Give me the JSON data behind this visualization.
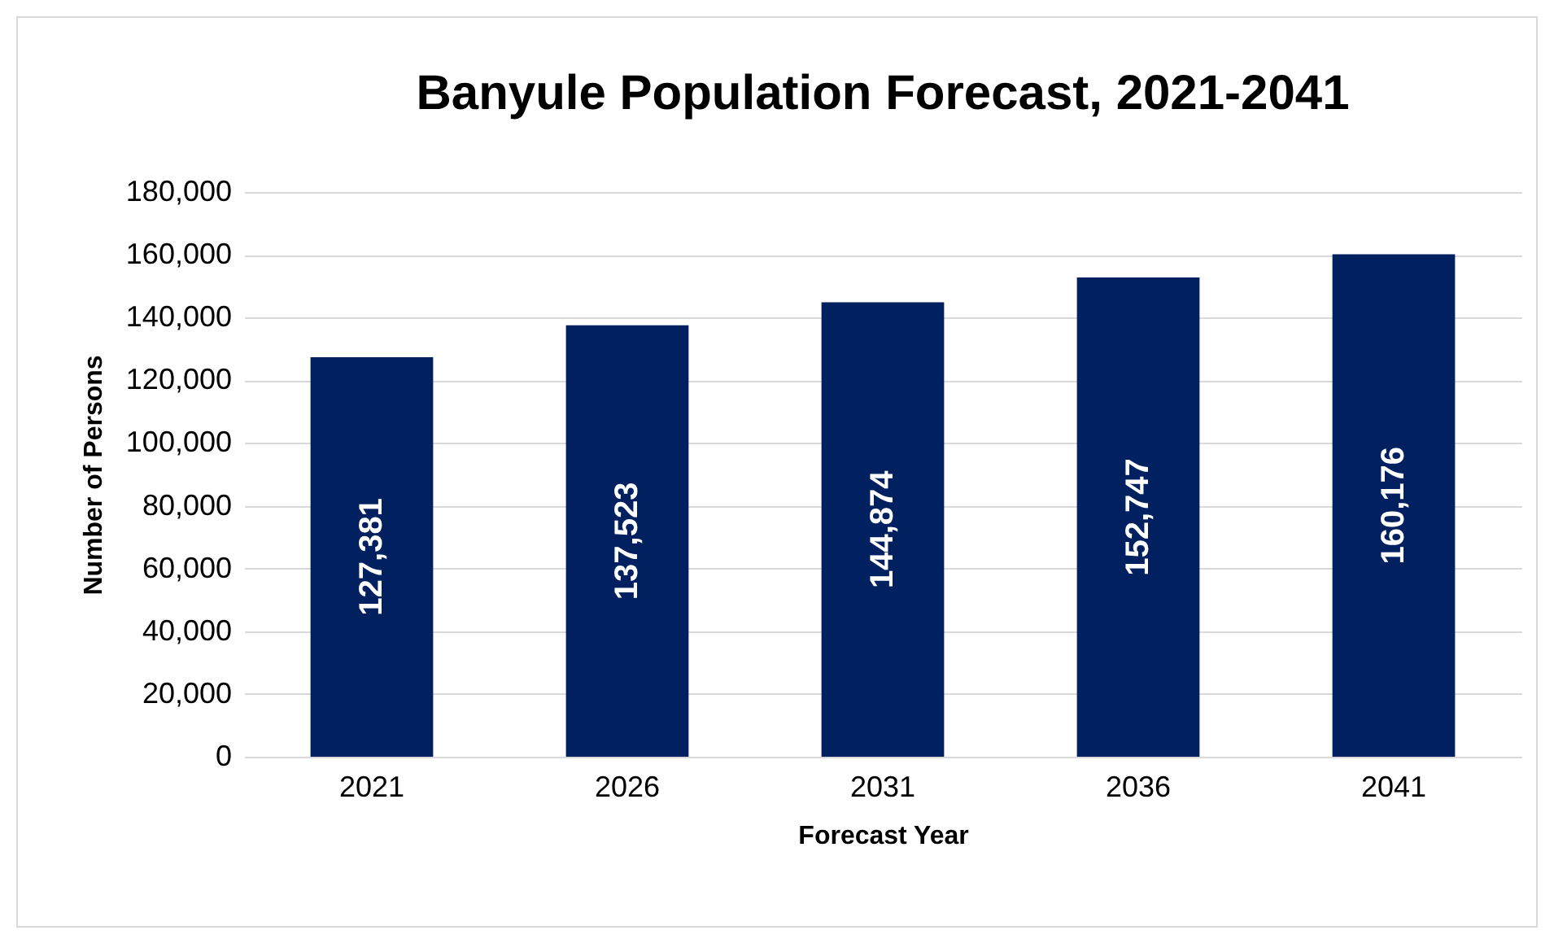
{
  "chart_data": {
    "type": "bar",
    "title": "Banyule Population Forecast, 2021-2041",
    "xlabel": "Forecast Year",
    "ylabel": "Number of Persons",
    "categories": [
      "2021",
      "2026",
      "2031",
      "2036",
      "2041"
    ],
    "values": [
      127381,
      137523,
      144874,
      152747,
      160176
    ],
    "value_labels": [
      "127,381",
      "137,523",
      "144,874",
      "152,747",
      "160,176"
    ],
    "color": "#002060",
    "ylim": [
      0,
      180000
    ],
    "yticks": [
      {
        "value": 0,
        "label": "0"
      },
      {
        "value": 20000,
        "label": "20,000"
      },
      {
        "value": 40000,
        "label": "40,000"
      },
      {
        "value": 60000,
        "label": "60,000"
      },
      {
        "value": 80000,
        "label": "80,000"
      },
      {
        "value": 100000,
        "label": "100,000"
      },
      {
        "value": 120000,
        "label": "120,000"
      },
      {
        "value": 140000,
        "label": "140,000"
      },
      {
        "value": 160000,
        "label": "160,000"
      },
      {
        "value": 180000,
        "label": "180,000"
      }
    ],
    "grid": "y"
  }
}
